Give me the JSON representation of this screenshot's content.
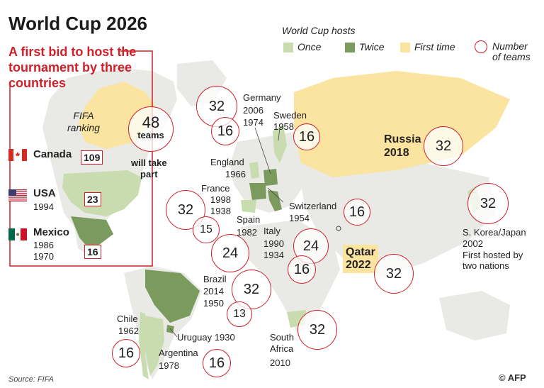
{
  "title": "World Cup 2026",
  "subtitle": "A first bid to host the tournament by three countries",
  "legend": {
    "heading": "World Cup hosts",
    "items": [
      {
        "label": "Once",
        "color": "#c8dcb0"
      },
      {
        "label": "Twice",
        "color": "#7a9a5e"
      },
      {
        "label": "First time",
        "color": "#fbe4a0"
      }
    ],
    "circle_label": "Number of teams",
    "circle_line1": "Number",
    "circle_line2": "of teams"
  },
  "colors": {
    "accent": "#d0202a",
    "once": "#c8dcb0",
    "twice": "#7a9a5e",
    "first_time": "#fbe4a0",
    "land": "#e9eae6"
  },
  "bid_panel": {
    "fifa_ranking_line1": "FIFA",
    "fifa_ranking_line2": "ranking",
    "teams_count": "48",
    "teams_word": "teams",
    "will_take_part_line1": "will take",
    "will_take_part_line2": "part",
    "countries": [
      {
        "name": "Canada",
        "years": "",
        "ranking": "109"
      },
      {
        "name": "USA",
        "years": "1994",
        "ranking": "23"
      },
      {
        "name": "Mexico",
        "years_line1": "1986",
        "years_line2": "1970",
        "ranking": "16"
      }
    ]
  },
  "hosts": {
    "germany": {
      "name": "Germany",
      "y1": "2006",
      "y2": "1974",
      "big": "32",
      "small": "16"
    },
    "sweden": {
      "name": "Sweden",
      "year": "1958",
      "teams": "16"
    },
    "russia": {
      "name": "Russia",
      "year": "2018",
      "teams": "32"
    },
    "england": {
      "name": "England",
      "year": "1966"
    },
    "france": {
      "name": "France",
      "y1": "1998",
      "y2": "1938",
      "big": "32",
      "small": "15"
    },
    "spain": {
      "name": "Spain",
      "year": "1982",
      "teams": "24"
    },
    "switzerland": {
      "name": "Switzerland",
      "year": "1954",
      "teams": "16"
    },
    "italy": {
      "name": "Italy",
      "y1": "1990",
      "y2": "1934",
      "big": "24",
      "small": "16"
    },
    "qatar": {
      "name": "Qatar",
      "year": "2022",
      "teams": "32"
    },
    "korea_japan": {
      "name": "S. Korea/Japan",
      "year": "2002",
      "note1": "First hosted by",
      "note2": "two nations",
      "teams": "32"
    },
    "brazil": {
      "name": "Brazil",
      "y1": "2014",
      "y2": "1950",
      "big": "32",
      "small": "13"
    },
    "chile": {
      "name": "Chile",
      "year": "1962",
      "teams": "16"
    },
    "uruguay": {
      "label": "Uruguay 1930"
    },
    "argentina": {
      "name": "Argentina",
      "year": "1978",
      "teams": "16"
    },
    "south_africa": {
      "name_line1": "South",
      "name_line2": "Africa",
      "year": "2010",
      "teams": "32"
    }
  },
  "source": "Source: FIFA",
  "credit": "© AFP"
}
